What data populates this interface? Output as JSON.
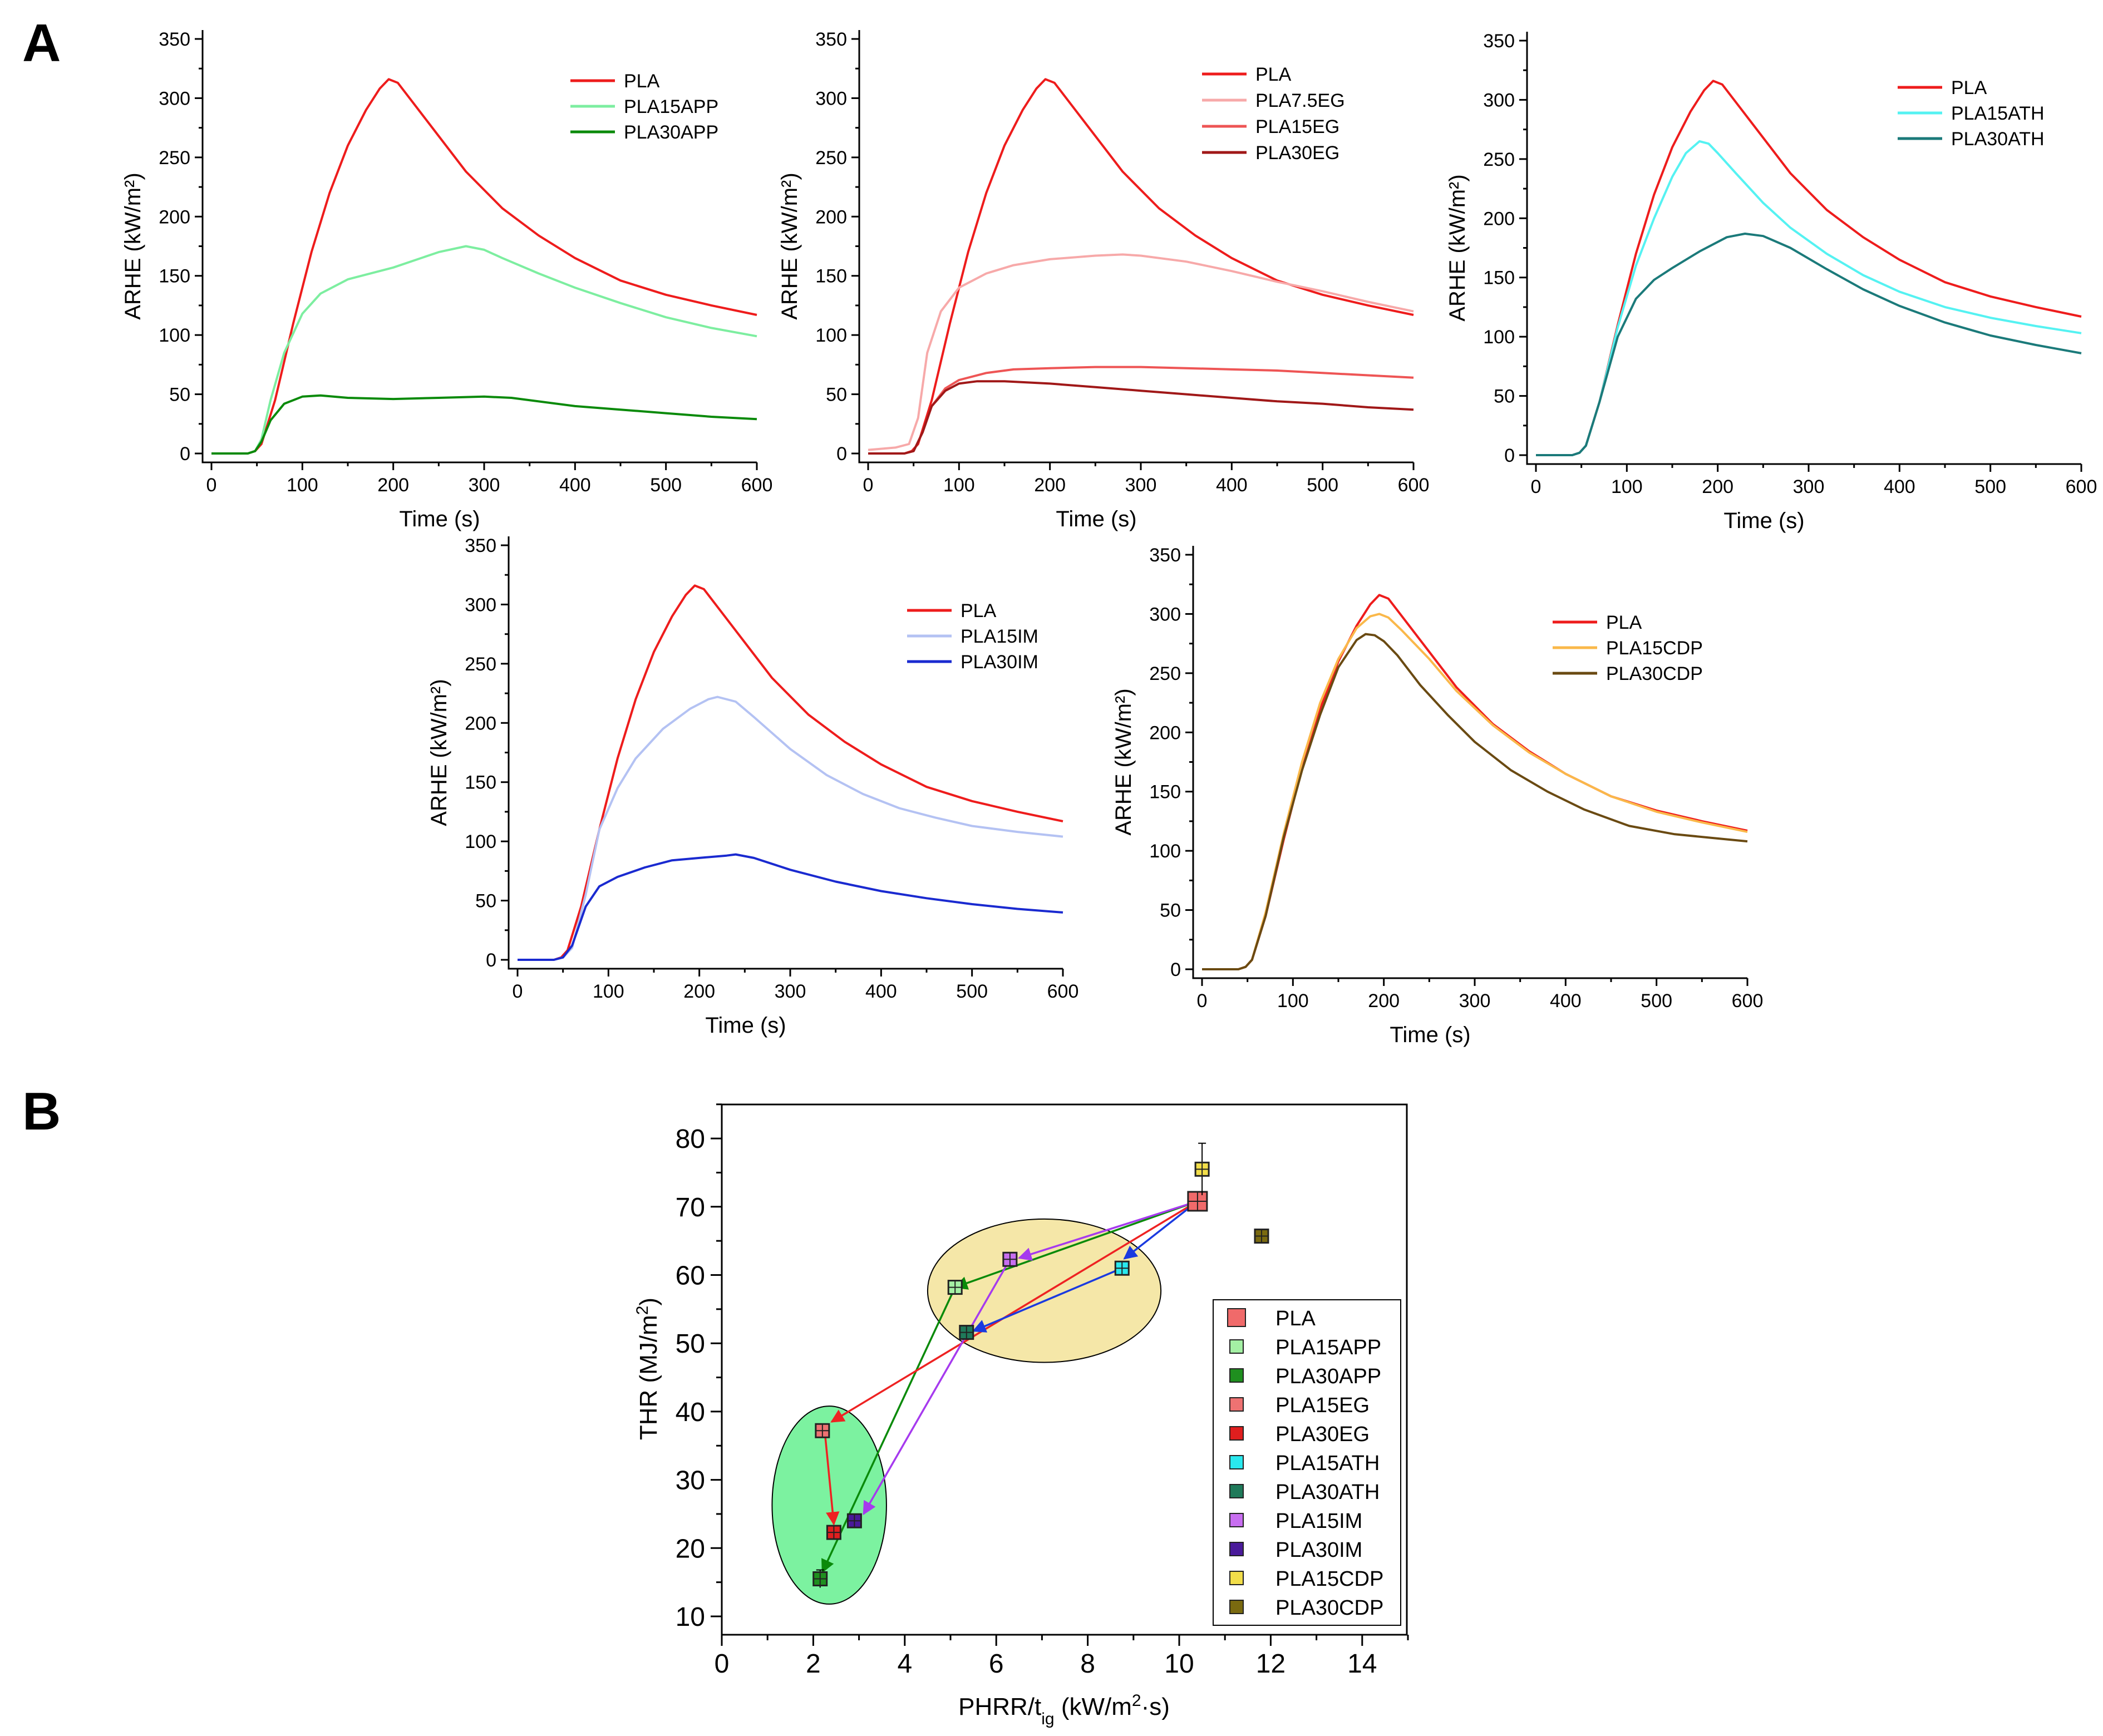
{
  "panel_labels": [
    "A",
    "B"
  ],
  "chart_data": [
    {
      "id": "app",
      "type": "line",
      "xlabel": "Time (s)",
      "ylabel": "ARHE (kW/m²)",
      "xlim": [
        0,
        600
      ],
      "ylim": [
        0,
        350
      ],
      "xticks": [
        0,
        100,
        200,
        300,
        400,
        500,
        600
      ],
      "yticks": [
        0,
        50,
        100,
        150,
        200,
        250,
        300,
        350
      ],
      "series": [
        {
          "name": "PLA",
          "color": "#ee1c1c",
          "x": [
            0,
            40,
            48,
            55,
            70,
            90,
            110,
            130,
            150,
            170,
            185,
            195,
            205,
            220,
            250,
            280,
            320,
            360,
            400,
            450,
            500,
            550,
            600
          ],
          "y": [
            0,
            0,
            2,
            8,
            45,
            110,
            170,
            220,
            260,
            290,
            308,
            316,
            313,
            298,
            268,
            238,
            207,
            184,
            165,
            146,
            134,
            125,
            117
          ]
        },
        {
          "name": "PLA15APP",
          "color": "#7deea0",
          "x": [
            0,
            40,
            48,
            55,
            65,
            80,
            100,
            120,
            150,
            200,
            250,
            280,
            300,
            320,
            360,
            400,
            450,
            500,
            550,
            600
          ],
          "y": [
            0,
            0,
            2,
            12,
            45,
            85,
            118,
            135,
            147,
            157,
            170,
            175,
            172,
            165,
            152,
            140,
            127,
            115,
            106,
            99
          ]
        },
        {
          "name": "PLA30APP",
          "color": "#0a8a0a",
          "x": [
            0,
            40,
            48,
            55,
            65,
            80,
            100,
            120,
            150,
            200,
            250,
            300,
            330,
            400,
            450,
            500,
            550,
            600
          ],
          "y": [
            0,
            0,
            2,
            10,
            28,
            42,
            48,
            49,
            47,
            46,
            47,
            48,
            47,
            40,
            37,
            34,
            31,
            29
          ]
        }
      ]
    },
    {
      "id": "eg",
      "type": "line",
      "xlabel": "Time (s)",
      "ylabel": "ARHE (kW/m²)",
      "xlim": [
        0,
        600
      ],
      "ylim": [
        0,
        350
      ],
      "xticks": [
        0,
        100,
        200,
        300,
        400,
        500,
        600
      ],
      "yticks": [
        0,
        50,
        100,
        150,
        200,
        250,
        300,
        350
      ],
      "series": [
        {
          "name": "PLA",
          "color": "#ee1c1c",
          "x": [
            0,
            40,
            48,
            55,
            70,
            90,
            110,
            130,
            150,
            170,
            185,
            195,
            205,
            220,
            250,
            280,
            320,
            360,
            400,
            450,
            500,
            550,
            600
          ],
          "y": [
            0,
            0,
            2,
            8,
            45,
            110,
            170,
            220,
            260,
            290,
            308,
            316,
            313,
            298,
            268,
            238,
            207,
            184,
            165,
            146,
            134,
            125,
            117
          ]
        },
        {
          "name": "PLA7.5EG",
          "color": "#f7a9a9",
          "x": [
            0,
            30,
            45,
            55,
            65,
            80,
            100,
            130,
            160,
            200,
            250,
            280,
            300,
            350,
            400,
            450,
            500,
            550,
            600
          ],
          "y": [
            3,
            5,
            8,
            30,
            85,
            120,
            140,
            152,
            159,
            164,
            167,
            168,
            167,
            162,
            154,
            145,
            137,
            128,
            120
          ]
        },
        {
          "name": "PLA15EG",
          "color": "#ee5555",
          "x": [
            0,
            40,
            50,
            60,
            70,
            85,
            100,
            130,
            160,
            200,
            250,
            300,
            350,
            400,
            450,
            500,
            550,
            600
          ],
          "y": [
            0,
            0,
            2,
            18,
            40,
            55,
            62,
            68,
            71,
            72,
            73,
            73,
            72,
            71,
            70,
            68,
            66,
            64
          ]
        },
        {
          "name": "PLA30EG",
          "color": "#a01818",
          "x": [
            0,
            40,
            50,
            60,
            70,
            85,
            100,
            120,
            150,
            200,
            250,
            300,
            350,
            400,
            450,
            500,
            550,
            600
          ],
          "y": [
            0,
            0,
            2,
            18,
            40,
            53,
            59,
            61,
            61,
            59,
            56,
            53,
            50,
            47,
            44,
            42,
            39,
            37
          ]
        }
      ]
    },
    {
      "id": "ath",
      "type": "line",
      "xlabel": "Time (s)",
      "ylabel": "ARHE (kW/m²)",
      "xlim": [
        0,
        600
      ],
      "ylim": [
        0,
        350
      ],
      "xticks": [
        0,
        100,
        200,
        300,
        400,
        500,
        600
      ],
      "yticks": [
        0,
        50,
        100,
        150,
        200,
        250,
        300,
        350
      ],
      "series": [
        {
          "name": "PLA",
          "color": "#ee1c1c",
          "x": [
            0,
            40,
            48,
            55,
            70,
            90,
            110,
            130,
            150,
            170,
            185,
            195,
            205,
            220,
            250,
            280,
            320,
            360,
            400,
            450,
            500,
            550,
            600
          ],
          "y": [
            0,
            0,
            2,
            8,
            45,
            110,
            170,
            220,
            260,
            290,
            308,
            316,
            313,
            298,
            268,
            238,
            207,
            184,
            165,
            146,
            134,
            125,
            117
          ]
        },
        {
          "name": "PLA15ATH",
          "color": "#55f2f2",
          "x": [
            0,
            40,
            48,
            55,
            70,
            90,
            110,
            130,
            150,
            165,
            180,
            190,
            200,
            220,
            250,
            280,
            320,
            360,
            400,
            450,
            500,
            550,
            600
          ],
          "y": [
            0,
            0,
            2,
            8,
            45,
            108,
            160,
            200,
            235,
            255,
            265,
            263,
            255,
            238,
            213,
            192,
            170,
            152,
            138,
            125,
            116,
            109,
            103
          ]
        },
        {
          "name": "PLA30ATH",
          "color": "#1b7a7a",
          "x": [
            0,
            40,
            48,
            55,
            70,
            90,
            110,
            130,
            150,
            180,
            210,
            230,
            250,
            280,
            320,
            360,
            400,
            450,
            500,
            550,
            600
          ],
          "y": [
            0,
            0,
            2,
            8,
            45,
            100,
            132,
            148,
            158,
            172,
            184,
            187,
            185,
            175,
            157,
            140,
            126,
            112,
            101,
            93,
            86
          ]
        }
      ]
    },
    {
      "id": "im",
      "type": "line",
      "xlabel": "Time (s)",
      "ylabel": "ARHE (kW/m²)",
      "xlim": [
        0,
        600
      ],
      "ylim": [
        0,
        350
      ],
      "xticks": [
        0,
        100,
        200,
        300,
        400,
        500,
        600
      ],
      "yticks": [
        0,
        50,
        100,
        150,
        200,
        250,
        300,
        350
      ],
      "series": [
        {
          "name": "PLA",
          "color": "#ee1c1c",
          "x": [
            0,
            40,
            48,
            55,
            70,
            90,
            110,
            130,
            150,
            170,
            185,
            195,
            205,
            220,
            250,
            280,
            320,
            360,
            400,
            450,
            500,
            550,
            600
          ],
          "y": [
            0,
            0,
            2,
            8,
            45,
            110,
            170,
            220,
            260,
            290,
            308,
            316,
            313,
            298,
            268,
            238,
            207,
            184,
            165,
            146,
            134,
            125,
            117
          ]
        },
        {
          "name": "PLA15IM",
          "color": "#b4c2f3",
          "x": [
            0,
            40,
            50,
            60,
            75,
            90,
            110,
            130,
            160,
            190,
            210,
            220,
            240,
            260,
            300,
            340,
            380,
            420,
            460,
            500,
            550,
            600
          ],
          "y": [
            0,
            0,
            2,
            10,
            55,
            110,
            145,
            170,
            195,
            212,
            220,
            222,
            218,
            205,
            178,
            156,
            140,
            128,
            120,
            113,
            108,
            104
          ]
        },
        {
          "name": "PLA30IM",
          "color": "#1a2ad0",
          "x": [
            0,
            40,
            50,
            60,
            75,
            90,
            110,
            140,
            170,
            200,
            230,
            240,
            260,
            300,
            350,
            400,
            450,
            500,
            550,
            600
          ],
          "y": [
            0,
            0,
            2,
            12,
            45,
            62,
            70,
            78,
            84,
            86,
            88,
            89,
            86,
            76,
            66,
            58,
            52,
            47,
            43,
            40
          ]
        }
      ]
    },
    {
      "id": "cdp",
      "type": "line",
      "xlabel": "Time (s)",
      "ylabel": "ARHE (kW/m²)",
      "xlim": [
        0,
        600
      ],
      "ylim": [
        0,
        350
      ],
      "xticks": [
        0,
        100,
        200,
        300,
        400,
        500,
        600
      ],
      "yticks": [
        0,
        50,
        100,
        150,
        200,
        250,
        300,
        350
      ],
      "series": [
        {
          "name": "PLA",
          "color": "#ee1c1c",
          "x": [
            0,
            40,
            48,
            55,
            70,
            90,
            110,
            130,
            150,
            170,
            185,
            195,
            205,
            220,
            250,
            280,
            320,
            360,
            400,
            450,
            500,
            550,
            600
          ],
          "y": [
            0,
            0,
            2,
            8,
            45,
            110,
            170,
            220,
            260,
            290,
            308,
            316,
            313,
            298,
            268,
            238,
            207,
            184,
            165,
            146,
            134,
            125,
            117
          ]
        },
        {
          "name": "PLA15CDP",
          "color": "#fab84a",
          "x": [
            0,
            40,
            48,
            55,
            70,
            90,
            110,
            130,
            150,
            170,
            185,
            195,
            205,
            220,
            250,
            280,
            320,
            360,
            400,
            450,
            500,
            550,
            600
          ],
          "y": [
            0,
            0,
            2,
            8,
            48,
            115,
            175,
            225,
            262,
            288,
            298,
            300,
            297,
            286,
            262,
            235,
            206,
            183,
            165,
            146,
            133,
            124,
            116
          ]
        },
        {
          "name": "PLA30CDP",
          "color": "#6a4a12",
          "x": [
            0,
            40,
            48,
            55,
            70,
            90,
            110,
            130,
            150,
            170,
            180,
            190,
            200,
            215,
            240,
            270,
            300,
            340,
            380,
            420,
            470,
            520,
            560,
            600
          ],
          "y": [
            0,
            0,
            2,
            8,
            45,
            112,
            168,
            215,
            255,
            278,
            283,
            282,
            277,
            265,
            240,
            215,
            192,
            168,
            150,
            135,
            121,
            114,
            111,
            108
          ]
        }
      ]
    },
    {
      "id": "thr",
      "type": "scatter",
      "xlabel_main": "PHRR/t",
      "xlabel_sub": "ig",
      "xlabel_units": " (kW/m",
      "xlabel_sup": "2",
      "xlabel_tail": "·s)",
      "ylabel_main": "THR (MJ/m",
      "ylabel_sup": "2",
      "ylabel_tail": ")",
      "xlim": [
        0,
        15
      ],
      "ylim": [
        10,
        85
      ],
      "xticks": [
        0,
        2,
        4,
        6,
        8,
        10,
        12,
        14
      ],
      "yticks": [
        10,
        20,
        30,
        40,
        50,
        60,
        70,
        80
      ],
      "points": [
        {
          "name": "PLA",
          "x": 10.4,
          "y": 70.8,
          "color": "#f06a6a",
          "err": 1.0
        },
        {
          "name": "PLA15APP",
          "x": 5.1,
          "y": 58.2,
          "color": "#a4f0a4",
          "err": 0.8
        },
        {
          "name": "PLA30APP",
          "x": 2.15,
          "y": 15.5,
          "color": "#1f8f1f",
          "err": 1.3
        },
        {
          "name": "PLA15EG",
          "x": 2.2,
          "y": 37.2,
          "color": "#ee7272",
          "err": 0.8
        },
        {
          "name": "PLA30EG",
          "x": 2.45,
          "y": 22.3,
          "color": "#e01e1e",
          "err": 0.8
        },
        {
          "name": "PLA15ATH",
          "x": 8.75,
          "y": 61.0,
          "color": "#2ae8ee",
          "err": 0.8
        },
        {
          "name": "PLA30ATH",
          "x": 5.35,
          "y": 51.6,
          "color": "#1f7a5a",
          "err": 0.8
        },
        {
          "name": "PLA15IM",
          "x": 6.3,
          "y": 62.3,
          "color": "#c86ef0",
          "err": 0.8
        },
        {
          "name": "PLA30IM",
          "x": 2.9,
          "y": 24.0,
          "color": "#4a1a9a",
          "err": 0.8
        },
        {
          "name": "PLA15CDP",
          "x": 10.5,
          "y": 75.5,
          "color": "#f2de4a",
          "err": 3.8
        },
        {
          "name": "PLA30CDP",
          "x": 11.8,
          "y": 65.7,
          "color": "#7a6a10",
          "err": 0.8
        }
      ],
      "arrows": [
        {
          "from": [
            10.4,
            70.8
          ],
          "to": [
            5.1,
            58.2
          ],
          "color": "#0a8a0a"
        },
        {
          "from": [
            5.1,
            58.2
          ],
          "to": [
            2.2,
            16.5
          ],
          "color": "#0a8a0a"
        },
        {
          "from": [
            10.4,
            70.8
          ],
          "to": [
            2.4,
            38.5
          ],
          "color": "#ee2222"
        },
        {
          "from": [
            2.25,
            37.2
          ],
          "to": [
            2.45,
            23.5
          ],
          "color": "#ee2222"
        },
        {
          "from": [
            10.4,
            70.8
          ],
          "to": [
            8.8,
            62.4
          ],
          "color": "#1a3ae0"
        },
        {
          "from": [
            8.75,
            61.0
          ],
          "to": [
            5.5,
            51.8
          ],
          "color": "#1a3ae0"
        },
        {
          "from": [
            10.4,
            70.8
          ],
          "to": [
            6.5,
            62.5
          ],
          "color": "#a63aee"
        },
        {
          "from": [
            6.3,
            62.3
          ],
          "to": [
            3.1,
            25.0
          ],
          "color": "#a63aee"
        }
      ],
      "ellipses": [
        {
          "cx": 7.05,
          "cy": 57.7,
          "rx": 2.55,
          "ry": 10.5,
          "fill": "#f5e7a8"
        },
        {
          "cx": 2.35,
          "cy": 26.3,
          "rx": 1.25,
          "ry": 14.5,
          "fill": "#7cf2a0"
        }
      ]
    }
  ]
}
